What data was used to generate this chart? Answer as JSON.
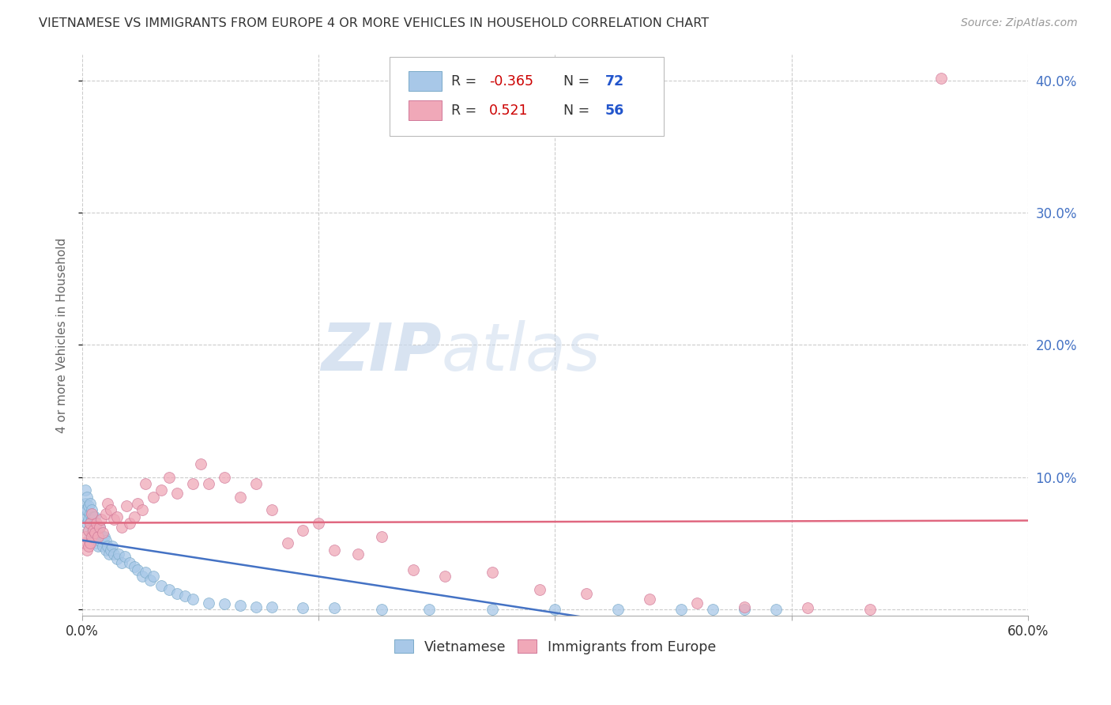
{
  "title": "VIETNAMESE VS IMMIGRANTS FROM EUROPE 4 OR MORE VEHICLES IN HOUSEHOLD CORRELATION CHART",
  "source": "Source: ZipAtlas.com",
  "ylabel": "4 or more Vehicles in Household",
  "xmin": 0.0,
  "xmax": 0.6,
  "ymin": -0.005,
  "ymax": 0.42,
  "yticks": [
    0.0,
    0.1,
    0.2,
    0.3,
    0.4
  ],
  "ytick_labels": [
    "",
    "10.0%",
    "20.0%",
    "30.0%",
    "40.0%"
  ],
  "xticks": [
    0.0,
    0.15,
    0.3,
    0.45,
    0.6
  ],
  "watermark_zip": "ZIP",
  "watermark_atlas": "atlas",
  "background_color": "#ffffff",
  "grid_color": "#cccccc",
  "title_color": "#333333",
  "axis_label_color": "#4472c4",
  "scatter_size": 100,
  "viet_color": "#a8c8e8",
  "viet_edge": "#7aaac8",
  "euro_color": "#f0a8b8",
  "euro_edge": "#d07898",
  "viet_line_color": "#4472c4",
  "euro_line_color": "#e06880",
  "legend_R1": "R = -0.365",
  "legend_N1": "N = 72",
  "legend_R2": "R =  0.521",
  "legend_N2": "N = 56",
  "legend_color_R": "#cc0000",
  "legend_color_N": "#2255cc",
  "viet_x": [
    0.001,
    0.002,
    0.002,
    0.002,
    0.003,
    0.003,
    0.003,
    0.004,
    0.004,
    0.004,
    0.005,
    0.005,
    0.005,
    0.005,
    0.006,
    0.006,
    0.006,
    0.007,
    0.007,
    0.007,
    0.008,
    0.008,
    0.008,
    0.009,
    0.009,
    0.01,
    0.01,
    0.011,
    0.011,
    0.012,
    0.013,
    0.013,
    0.014,
    0.015,
    0.015,
    0.016,
    0.017,
    0.018,
    0.019,
    0.02,
    0.022,
    0.023,
    0.025,
    0.027,
    0.03,
    0.033,
    0.035,
    0.038,
    0.04,
    0.043,
    0.045,
    0.05,
    0.055,
    0.06,
    0.065,
    0.07,
    0.08,
    0.09,
    0.1,
    0.11,
    0.12,
    0.14,
    0.16,
    0.19,
    0.22,
    0.26,
    0.3,
    0.34,
    0.38,
    0.4,
    0.42,
    0.44
  ],
  "viet_y": [
    0.07,
    0.08,
    0.075,
    0.09,
    0.065,
    0.075,
    0.085,
    0.06,
    0.068,
    0.078,
    0.055,
    0.065,
    0.072,
    0.08,
    0.058,
    0.068,
    0.075,
    0.055,
    0.062,
    0.07,
    0.055,
    0.062,
    0.07,
    0.05,
    0.06,
    0.048,
    0.058,
    0.052,
    0.062,
    0.055,
    0.048,
    0.055,
    0.055,
    0.045,
    0.052,
    0.048,
    0.042,
    0.045,
    0.048,
    0.042,
    0.038,
    0.042,
    0.035,
    0.04,
    0.035,
    0.032,
    0.03,
    0.025,
    0.028,
    0.022,
    0.025,
    0.018,
    0.015,
    0.012,
    0.01,
    0.008,
    0.005,
    0.004,
    0.003,
    0.002,
    0.002,
    0.001,
    0.001,
    0.0,
    0.0,
    0.0,
    0.0,
    0.0,
    0.0,
    0.0,
    0.0,
    0.0
  ],
  "euro_x": [
    0.001,
    0.002,
    0.003,
    0.004,
    0.004,
    0.005,
    0.005,
    0.006,
    0.006,
    0.007,
    0.008,
    0.009,
    0.01,
    0.011,
    0.012,
    0.013,
    0.015,
    0.016,
    0.018,
    0.02,
    0.022,
    0.025,
    0.028,
    0.03,
    0.033,
    0.035,
    0.038,
    0.04,
    0.045,
    0.05,
    0.055,
    0.06,
    0.07,
    0.075,
    0.08,
    0.09,
    0.1,
    0.11,
    0.12,
    0.13,
    0.14,
    0.15,
    0.16,
    0.175,
    0.19,
    0.21,
    0.23,
    0.26,
    0.29,
    0.32,
    0.36,
    0.39,
    0.42,
    0.46,
    0.5,
    0.545
  ],
  "euro_y": [
    0.05,
    0.055,
    0.045,
    0.048,
    0.06,
    0.05,
    0.065,
    0.055,
    0.072,
    0.06,
    0.058,
    0.065,
    0.055,
    0.062,
    0.068,
    0.058,
    0.072,
    0.08,
    0.075,
    0.068,
    0.07,
    0.062,
    0.078,
    0.065,
    0.07,
    0.08,
    0.075,
    0.095,
    0.085,
    0.09,
    0.1,
    0.088,
    0.095,
    0.11,
    0.095,
    0.1,
    0.085,
    0.095,
    0.075,
    0.05,
    0.06,
    0.065,
    0.045,
    0.042,
    0.055,
    0.03,
    0.025,
    0.028,
    0.015,
    0.012,
    0.008,
    0.005,
    0.002,
    0.001,
    0.0,
    0.402
  ]
}
